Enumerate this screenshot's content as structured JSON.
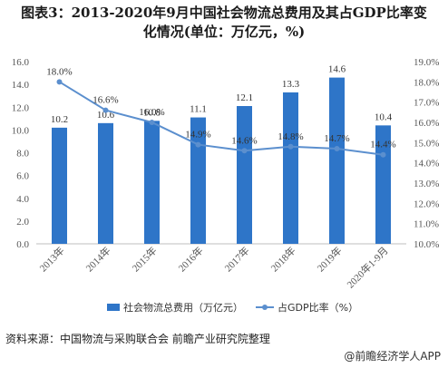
{
  "title_line1": "图表3：2013-2020年9月中国社会物流总费用及其占GDP比率变",
  "title_line2": "化情况(单位：万亿元，%)",
  "source": "资料来源：中国物流与采购联合会 前瞻产业研究院整理",
  "brand": "@前瞻经济学人APP",
  "chart_data": {
    "type": "bar",
    "categories": [
      "2013年",
      "2014年",
      "2015年",
      "2016年",
      "2017年",
      "2018年",
      "2019年",
      "2020年1-9月"
    ],
    "series": [
      {
        "name": "社会物流总费用（万亿元）",
        "type": "bar",
        "axis": "left",
        "color": "#2e75c8",
        "values": [
          10.2,
          10.6,
          10.8,
          11.1,
          12.1,
          13.3,
          14.6,
          10.4
        ],
        "labels": [
          "10.2",
          "10.6",
          "10.8",
          "11.1",
          "12.1",
          "13.3",
          "14.6",
          "10.4"
        ]
      },
      {
        "name": "占GDP比率（%）",
        "type": "line",
        "axis": "right",
        "color": "#5b8fce",
        "values": [
          18.0,
          16.6,
          16.0,
          14.9,
          14.6,
          14.8,
          14.7,
          14.4
        ],
        "labels": [
          "18.0%",
          "16.6%",
          "16.0%",
          "14.9%",
          "14.6%",
          "14.8%",
          "14.7%",
          "14.4%"
        ]
      }
    ],
    "y_left": {
      "min": 0,
      "max": 16,
      "step": 2,
      "ticks": [
        "0.0",
        "2.0",
        "4.0",
        "6.0",
        "8.0",
        "10.0",
        "12.0",
        "14.0",
        "16.0"
      ]
    },
    "y_right": {
      "min": 10,
      "max": 19,
      "step": 1,
      "ticks": [
        "10.0%",
        "11.0%",
        "12.0%",
        "13.0%",
        "14.0%",
        "15.0%",
        "16.0%",
        "17.0%",
        "18.0%",
        "19.0%"
      ]
    },
    "grid": false,
    "legend_position": "bottom"
  }
}
